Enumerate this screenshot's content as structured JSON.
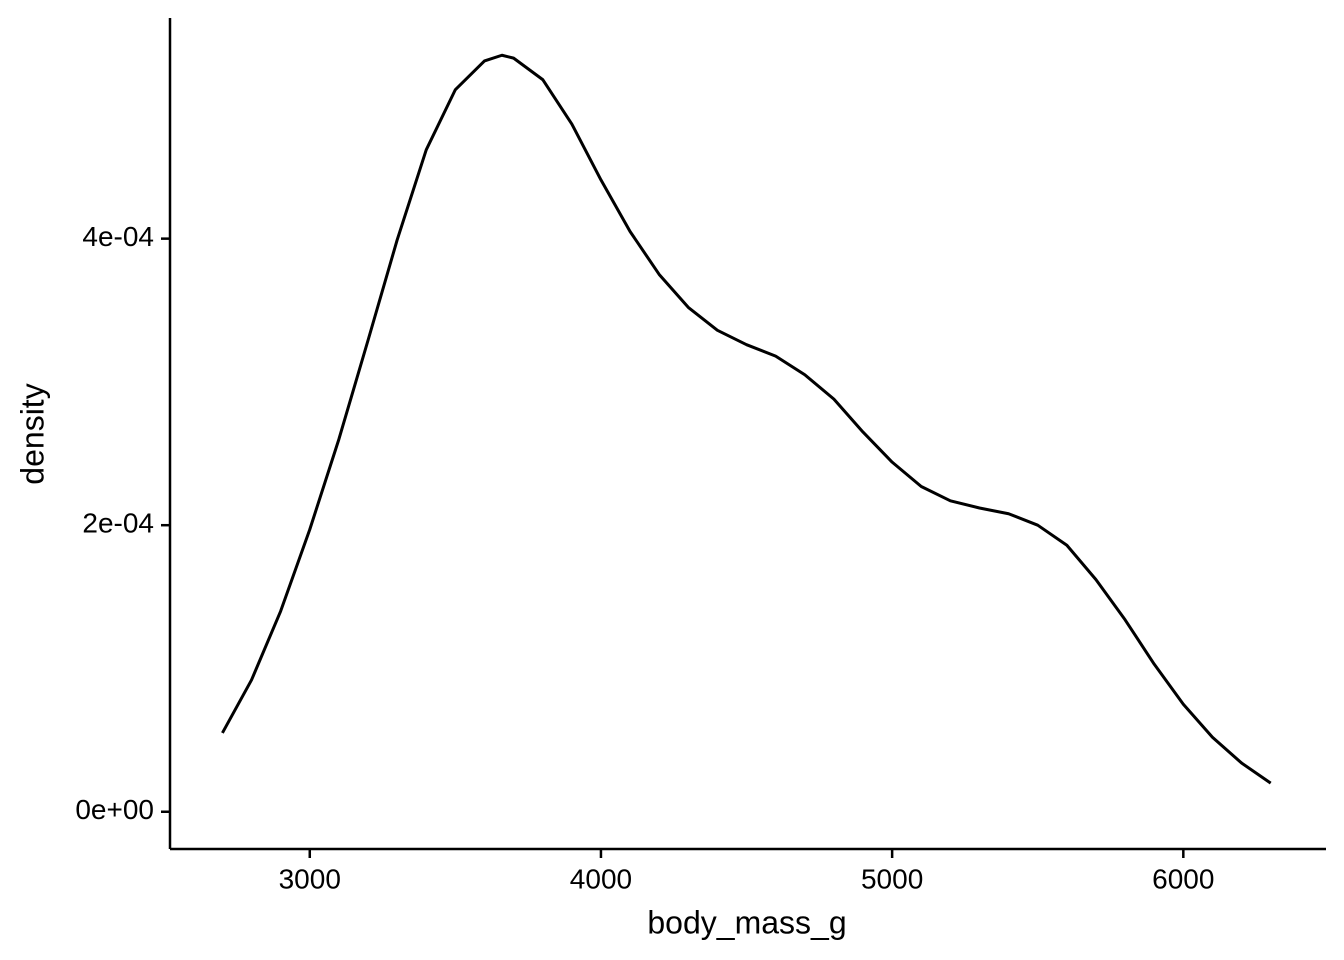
{
  "chart_data": {
    "type": "line",
    "x_label": "body_mass_g",
    "y_label": "density",
    "x": [
      2700,
      2800,
      2900,
      3000,
      3100,
      3200,
      3300,
      3400,
      3500,
      3600,
      3660,
      3700,
      3800,
      3900,
      4000,
      4100,
      4200,
      4300,
      4400,
      4500,
      4600,
      4700,
      4800,
      4900,
      5000,
      5100,
      5200,
      5300,
      5400,
      5500,
      5600,
      5700,
      5800,
      5900,
      6000,
      6100,
      6200,
      6300
    ],
    "values": [
      5.5e-05,
      9.2e-05,
      0.00014,
      0.000197,
      0.00026,
      0.000329,
      0.000399,
      0.000462,
      0.000504,
      0.000524,
      0.000528,
      0.000526,
      0.000511,
      0.00048,
      0.000441,
      0.000405,
      0.000375,
      0.000352,
      0.000336,
      0.000326,
      0.000318,
      0.000305,
      0.000288,
      0.000265,
      0.000244,
      0.000227,
      0.000217,
      0.000212,
      0.000208,
      0.0002,
      0.000186,
      0.000162,
      0.000134,
      0.000103,
      7.5e-05,
      5.2e-05,
      3.4e-05,
      2e-05
    ],
    "color": "#000000",
    "xlim": [
      2520,
      6490
    ],
    "ylim": [
      -2.6e-05,
      0.000554
    ],
    "xticks": [
      3000,
      4000,
      5000,
      6000
    ],
    "yticks": [
      {
        "value": 0,
        "label": "0e+00"
      },
      {
        "value": 0.0002,
        "label": "2e-04"
      },
      {
        "value": 0.0004,
        "label": "4e-04"
      }
    ]
  }
}
